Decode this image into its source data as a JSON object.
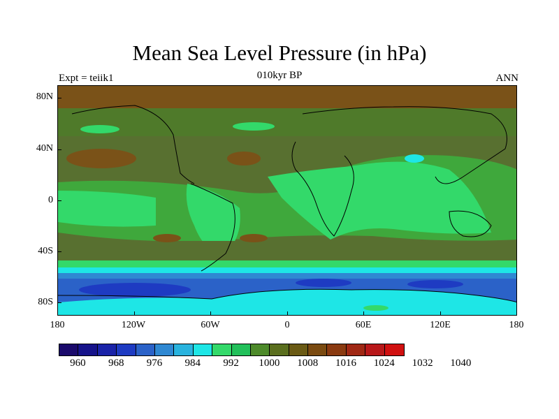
{
  "title": "Mean Sea Level Pressure (in hPa)",
  "subtitle": "010kyr BP",
  "left_string": "Expt = teiik1",
  "right_string": "ANN",
  "lat_labels": [
    "80N",
    "40N",
    "0",
    "40S",
    "80S"
  ],
  "lon_labels": [
    "180",
    "120W",
    "60W",
    "0",
    "60E",
    "120E",
    "180"
  ],
  "colorbar": {
    "labels": [
      "960",
      "968",
      "976",
      "984",
      "992",
      "1000",
      "1008",
      "1016",
      "1024",
      "1032",
      "1040"
    ],
    "colors": [
      "#1a0a6b",
      "#16138a",
      "#1a23a8",
      "#1e3bc2",
      "#2b62c8",
      "#2f88d2",
      "#29b3de",
      "#1ee6e6",
      "#33d96a",
      "#22c05a",
      "#4d8a2a",
      "#5a6e1e",
      "#6a5a14",
      "#7a4a10",
      "#8a3a10",
      "#a02814",
      "#b8181a",
      "#d01010"
    ]
  },
  "colors": {
    "high_pressure": "#7a4a10",
    "mid_pressure": "#4d6e28",
    "low_land": "#33d96a",
    "trough": "#1ee6e6",
    "deep_low": "#1e3bc2"
  }
}
